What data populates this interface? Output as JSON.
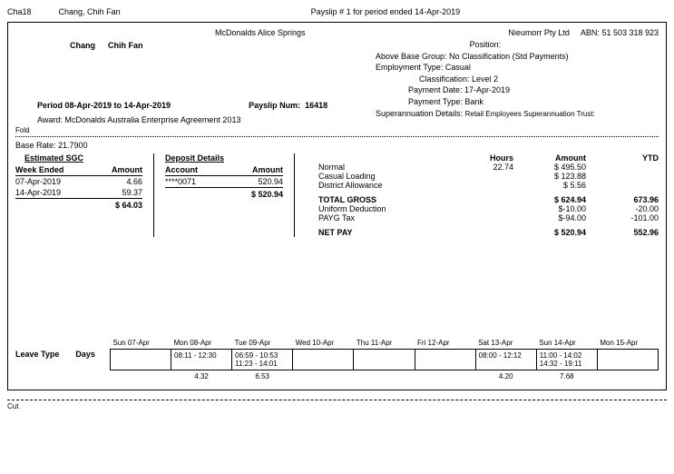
{
  "header": {
    "code": "Cha18",
    "name": "Chang, Chih Fan",
    "title": "Payslip # 1 for period ended  14-Apr-2019"
  },
  "company": "McDonalds Alice Springs",
  "employer": "Nieumorr Pty Ltd",
  "abn_label": "ABN:",
  "abn": "51 503 318 923",
  "emp_surname": "Chang",
  "emp_firstname": "Chih Fan",
  "details": {
    "position_lbl": "Position:",
    "above_base": "Above Base Group: No Classification (Std Payments)",
    "emp_type": "Employment Type: Casual",
    "classification": "Classification: Level 2",
    "pay_date": "Payment Date: 17-Apr-2019",
    "pay_type": "Payment Type: Bank",
    "super_lbl": "Superannuation Details:",
    "super_val": "Retail Employees Superannuation Trust:"
  },
  "period_lbl": "Period 08-Apr-2019 to 14-Apr-2019",
  "payslip_num_lbl": "Payslip Num:",
  "payslip_num": "16418",
  "award": "Award: McDonalds Australia Enterprise Agreement 2013",
  "fold": "Fold",
  "baserate": "Base Rate: 21.7900",
  "sgc": {
    "title": "Estimated SGC",
    "h1": "Week Ended",
    "h2": "Amount",
    "rows": [
      {
        "wk": "07-Apr-2019",
        "amt": "4.66"
      },
      {
        "wk": "14-Apr-2019",
        "amt": "59.37"
      }
    ],
    "total": "$ 64.03"
  },
  "dep": {
    "title": "Deposit Details",
    "h1": "Account",
    "h2": "Amount",
    "rows": [
      {
        "acct": "****0071",
        "amt": "520.94"
      }
    ],
    "total": "$ 520.94"
  },
  "earn": {
    "h_hours": "Hours",
    "h_amt": "Amount",
    "h_ytd": "YTD",
    "lines": [
      {
        "lbl": "Normal",
        "hrs": "22.74",
        "amt": "$ 495.50",
        "ytd": ""
      },
      {
        "lbl": "Casual Loading",
        "hrs": "",
        "amt": "$ 123.88",
        "ytd": ""
      },
      {
        "lbl": "District Allowance",
        "hrs": "",
        "amt": "$ 5.56",
        "ytd": ""
      }
    ],
    "gross": {
      "lbl": "TOTAL GROSS",
      "amt": "$ 624.94",
      "ytd": "673.96"
    },
    "ded": [
      {
        "lbl": "Uniform Deduction",
        "amt": "$-10.00",
        "ytd": "-20.00"
      },
      {
        "lbl": "PAYG Tax",
        "amt": "$-94.00",
        "ytd": "-101.00"
      }
    ],
    "net": {
      "lbl": "NET PAY",
      "amt": "$ 520.94",
      "ytd": "552.96"
    }
  },
  "leave": {
    "l1": "Leave Type",
    "l2": "Days"
  },
  "time": {
    "days": [
      "Sun 07-Apr",
      "Mon 08-Apr",
      "Tue 09-Apr",
      "Wed 10-Apr",
      "Thu 11-Apr",
      "Fri 12-Apr",
      "Sat 13-Apr",
      "Sun 14-Apr",
      "Mon 15-Apr"
    ],
    "cells": [
      "",
      "08:11 - 12:30",
      "06:59 - 10:53\n11:23 - 14:01",
      "",
      "",
      "",
      "08:00 - 12:12",
      "11:00 - 14:02\n14:32 - 19:11",
      ""
    ],
    "totals": [
      "",
      "4.32",
      "6.53",
      "",
      "",
      "",
      "4.20",
      "7.68",
      ""
    ]
  },
  "cut": "Cut"
}
